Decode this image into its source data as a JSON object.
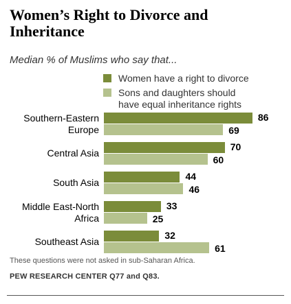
{
  "header": {
    "title": "Women’s Right to Divorce and Inheritance",
    "subtitle": "Median % of Muslims who say that..."
  },
  "footer": {
    "note": "These questions were not asked in sub-Saharan Africa.",
    "source": "PEW RESEARCH CENTER Q77 and Q83."
  },
  "colors": {
    "divorce": "#7b8c3a",
    "inheritance": "#b5c28e"
  },
  "chart_data": {
    "type": "bar",
    "orientation": "horizontal",
    "title": "Women’s Right to Divorce and Inheritance",
    "subtitle": "Median % of Muslims who say that...",
    "categories": [
      [
        "Southern-Eastern",
        "Europe"
      ],
      [
        "Central Asia"
      ],
      [
        "South Asia"
      ],
      [
        "Middle East-North",
        "Africa"
      ],
      [
        "Southeast Asia"
      ]
    ],
    "series": [
      {
        "name": "Women have a right to divorce",
        "values": [
          86,
          70,
          44,
          33,
          32
        ]
      },
      {
        "name": "Sons and daughters should have equal inheritance rights",
        "values": [
          69,
          60,
          46,
          25,
          61
        ]
      }
    ],
    "legend": [
      [
        "Women have a right to divorce"
      ],
      [
        "Sons and daughters should",
        "have equal inheritance rights"
      ]
    ],
    "xlim": [
      0,
      100
    ],
    "grid": false,
    "legend_position": "top"
  }
}
